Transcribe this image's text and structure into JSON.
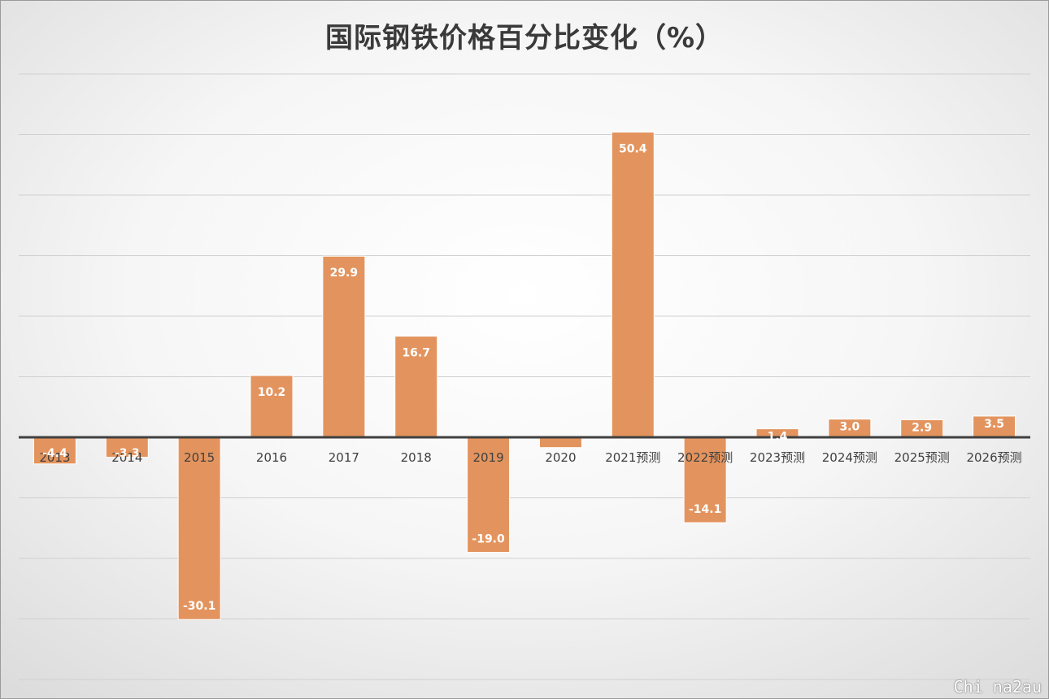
{
  "chart_data": {
    "type": "bar",
    "title": "国际钢铁价格百分比变化（%）",
    "categories": [
      "2013",
      "2014",
      "2015",
      "2016",
      "2017",
      "2018",
      "2019",
      "2020",
      "2021预测",
      "2022预测",
      "2023预测",
      "2024预测",
      "2025预测",
      "2026预测"
    ],
    "values": [
      -4.4,
      -3.3,
      -30.1,
      10.2,
      29.9,
      16.7,
      -19.0,
      -1.7,
      50.4,
      -14.1,
      1.4,
      3.0,
      2.9,
      3.5
    ],
    "data_labels": [
      "-4.4",
      "-3.3",
      "-30.1",
      "10.2",
      "29.9",
      "16.7",
      "-19.0",
      "",
      "50.4",
      "-14.1",
      "1.4",
      "3.0",
      "2.9",
      "3.5"
    ],
    "ylim": [
      -40,
      60
    ],
    "grid": true,
    "bar_color": "#E3945E",
    "label_color": "#FFFFFF",
    "axis_color": "#404040",
    "gridline_color": "#d0d0d0"
  },
  "watermark": "Chi na2au"
}
